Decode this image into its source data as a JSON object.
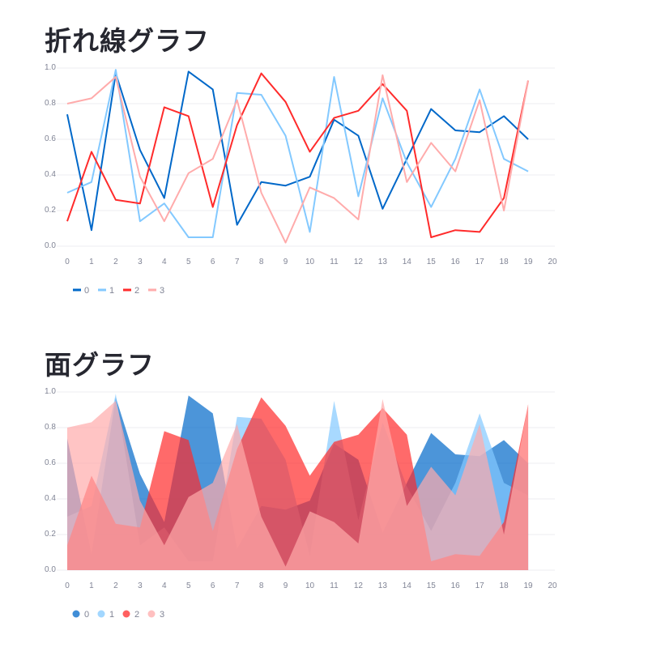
{
  "titles": {
    "line": "折れ線グラフ",
    "area": "面グラフ"
  },
  "chart_data": [
    {
      "type": "line",
      "title": "折れ線グラフ",
      "xlim": [
        0,
        20
      ],
      "ylim": [
        0,
        1.0
      ],
      "x_ticks": [
        "0",
        "1",
        "2",
        "3",
        "4",
        "5",
        "6",
        "7",
        "8",
        "9",
        "10",
        "11",
        "12",
        "13",
        "14",
        "15",
        "16",
        "17",
        "18",
        "19",
        "20"
      ],
      "y_ticks": [
        "0.0",
        "0.2",
        "0.4",
        "0.6",
        "0.8",
        "1.0"
      ],
      "grid": true,
      "legend_position": "bottom-left",
      "x": [
        0,
        1,
        2,
        3,
        4,
        5,
        6,
        7,
        8,
        9,
        10,
        11,
        12,
        13,
        14,
        15,
        16,
        17,
        18,
        19
      ],
      "series": [
        {
          "name": "0",
          "color": "#0068c9",
          "values": [
            0.74,
            0.09,
            0.97,
            0.54,
            0.27,
            0.98,
            0.88,
            0.12,
            0.36,
            0.34,
            0.39,
            0.71,
            0.62,
            0.21,
            0.49,
            0.77,
            0.65,
            0.64,
            0.73,
            0.6
          ]
        },
        {
          "name": "1",
          "color": "#83c9ff",
          "values": [
            0.3,
            0.36,
            0.99,
            0.14,
            0.24,
            0.05,
            0.05,
            0.86,
            0.85,
            0.62,
            0.08,
            0.95,
            0.28,
            0.83,
            0.47,
            0.22,
            0.49,
            0.88,
            0.49,
            0.42
          ]
        },
        {
          "name": "2",
          "color": "#ff2b2b",
          "values": [
            0.14,
            0.53,
            0.26,
            0.24,
            0.78,
            0.73,
            0.22,
            0.68,
            0.97,
            0.81,
            0.53,
            0.72,
            0.76,
            0.91,
            0.76,
            0.05,
            0.09,
            0.08,
            0.27,
            0.93
          ]
        },
        {
          "name": "3",
          "color": "#ffabab",
          "values": [
            0.8,
            0.83,
            0.95,
            0.39,
            0.14,
            0.41,
            0.49,
            0.82,
            0.3,
            0.02,
            0.33,
            0.27,
            0.15,
            0.96,
            0.36,
            0.58,
            0.42,
            0.82,
            0.2,
            0.93
          ]
        }
      ]
    },
    {
      "type": "area",
      "title": "面グラフ",
      "xlim": [
        0,
        20
      ],
      "ylim": [
        0,
        1.0
      ],
      "x_ticks": [
        "0",
        "1",
        "2",
        "3",
        "4",
        "5",
        "6",
        "7",
        "8",
        "9",
        "10",
        "11",
        "12",
        "13",
        "14",
        "15",
        "16",
        "17",
        "18",
        "19",
        "20"
      ],
      "y_ticks": [
        "0.0",
        "0.2",
        "0.4",
        "0.6",
        "0.8",
        "1.0"
      ],
      "grid": true,
      "legend_position": "bottom-left",
      "x": [
        0,
        1,
        2,
        3,
        4,
        5,
        6,
        7,
        8,
        9,
        10,
        11,
        12,
        13,
        14,
        15,
        16,
        17,
        18,
        19
      ],
      "series": [
        {
          "name": "0",
          "color": "#0068c9",
          "values": [
            0.74,
            0.09,
            0.97,
            0.54,
            0.27,
            0.98,
            0.88,
            0.12,
            0.36,
            0.34,
            0.39,
            0.71,
            0.62,
            0.21,
            0.49,
            0.77,
            0.65,
            0.64,
            0.73,
            0.6
          ]
        },
        {
          "name": "1",
          "color": "#83c9ff",
          "values": [
            0.3,
            0.36,
            0.99,
            0.14,
            0.24,
            0.05,
            0.05,
            0.86,
            0.85,
            0.62,
            0.08,
            0.95,
            0.28,
            0.83,
            0.47,
            0.22,
            0.49,
            0.88,
            0.49,
            0.42
          ]
        },
        {
          "name": "2",
          "color": "#ff2b2b",
          "values": [
            0.14,
            0.53,
            0.26,
            0.24,
            0.78,
            0.73,
            0.22,
            0.68,
            0.97,
            0.81,
            0.53,
            0.72,
            0.76,
            0.91,
            0.76,
            0.05,
            0.09,
            0.08,
            0.27,
            0.93
          ]
        },
        {
          "name": "3",
          "color": "#ffabab",
          "values": [
            0.8,
            0.83,
            0.95,
            0.39,
            0.14,
            0.41,
            0.49,
            0.82,
            0.3,
            0.02,
            0.33,
            0.27,
            0.15,
            0.96,
            0.36,
            0.58,
            0.42,
            0.82,
            0.2,
            0.93
          ]
        }
      ]
    }
  ]
}
